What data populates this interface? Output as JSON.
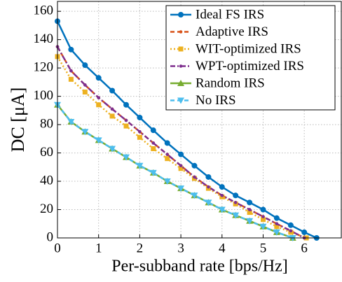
{
  "chart_data": {
    "type": "line",
    "xlabel": "Per-subband rate [bps/Hz]",
    "ylabel": "DC [μA]",
    "xlim": [
      0,
      6.9
    ],
    "ylim": [
      0,
      167
    ],
    "xticks": [
      0,
      1,
      2,
      3,
      4,
      5,
      6
    ],
    "yticks": [
      0,
      20,
      40,
      60,
      80,
      100,
      120,
      140,
      160
    ],
    "grid": true,
    "legend": "upper right",
    "series": [
      {
        "name": "Ideal FS IRS",
        "color": "#0072bd",
        "marker": "circle",
        "linestyle": "solid",
        "x": [
          0,
          0.33,
          0.67,
          1,
          1.33,
          1.67,
          2,
          2.33,
          2.67,
          3,
          3.33,
          3.67,
          4,
          4.33,
          4.67,
          5,
          5.33,
          5.67,
          6,
          6.3
        ],
        "values": [
          153,
          133,
          122,
          113,
          104,
          94,
          85,
          76,
          67,
          59,
          51,
          43,
          36,
          30,
          25,
          20,
          14,
          9,
          4,
          0
        ]
      },
      {
        "name": "Adaptive IRS",
        "color": "#d95319",
        "marker": "dot",
        "linestyle": "dashed",
        "x": [
          0,
          0.33,
          0.67,
          1,
          1.33,
          1.67,
          2,
          2.33,
          2.67,
          3,
          3.33,
          3.67,
          4,
          4.33,
          4.67,
          5,
          5.33,
          5.67,
          6
        ],
        "values": [
          135,
          118,
          108,
          99,
          91,
          83,
          75,
          67,
          59,
          51,
          43,
          36,
          30,
          25,
          20,
          15,
          10,
          5,
          0
        ]
      },
      {
        "name": "WIT-optimized IRS",
        "color": "#edb120",
        "marker": "square",
        "linestyle": "dotted",
        "x": [
          0,
          0.33,
          0.67,
          1,
          1.33,
          1.67,
          2,
          2.33,
          2.67,
          3,
          3.33,
          3.67,
          4,
          4.33,
          4.67,
          5,
          5.33,
          5.67,
          6.05
        ],
        "values": [
          128,
          112,
          103,
          94,
          86,
          79,
          71,
          63,
          56,
          49,
          42,
          35,
          29,
          24,
          18,
          13,
          8,
          4,
          0
        ]
      },
      {
        "name": "WPT-optimized IRS",
        "color": "#7e2f8e",
        "marker": "dot",
        "linestyle": "dashdot",
        "x": [
          0,
          0.33,
          0.67,
          1,
          1.33,
          1.67,
          2,
          2.33,
          2.67,
          3,
          3.33,
          3.67,
          4,
          4.33,
          4.67,
          5,
          5.33,
          5.67,
          6
        ],
        "values": [
          135,
          118,
          108,
          99,
          91,
          83,
          75,
          67,
          59,
          51,
          43,
          36,
          30,
          25,
          20,
          15,
          10,
          5,
          0
        ]
      },
      {
        "name": "Random IRS",
        "color": "#77ac30",
        "marker": "triangle-up",
        "linestyle": "solid",
        "x": [
          0,
          0.33,
          0.67,
          1,
          1.33,
          1.67,
          2,
          2.33,
          2.67,
          3,
          3.33,
          3.67,
          4,
          4.33,
          4.67,
          5,
          5.33,
          5.72
        ],
        "values": [
          94,
          82,
          75,
          69,
          63,
          57,
          51,
          46,
          40,
          35,
          30,
          25,
          20,
          16,
          12,
          8,
          4,
          0
        ]
      },
      {
        "name": "No IRS",
        "color": "#4dbeee",
        "marker": "triangle-down",
        "linestyle": "dashed",
        "x": [
          0,
          0.33,
          0.67,
          1,
          1.33,
          1.67,
          2,
          2.33,
          2.67,
          3,
          3.33,
          3.67,
          4,
          4.33,
          4.67,
          5,
          5.33,
          5.72
        ],
        "values": [
          94,
          82,
          75,
          69,
          63,
          57,
          51,
          46,
          40,
          35,
          30,
          25,
          20,
          16,
          12,
          8,
          4,
          0
        ]
      }
    ]
  }
}
